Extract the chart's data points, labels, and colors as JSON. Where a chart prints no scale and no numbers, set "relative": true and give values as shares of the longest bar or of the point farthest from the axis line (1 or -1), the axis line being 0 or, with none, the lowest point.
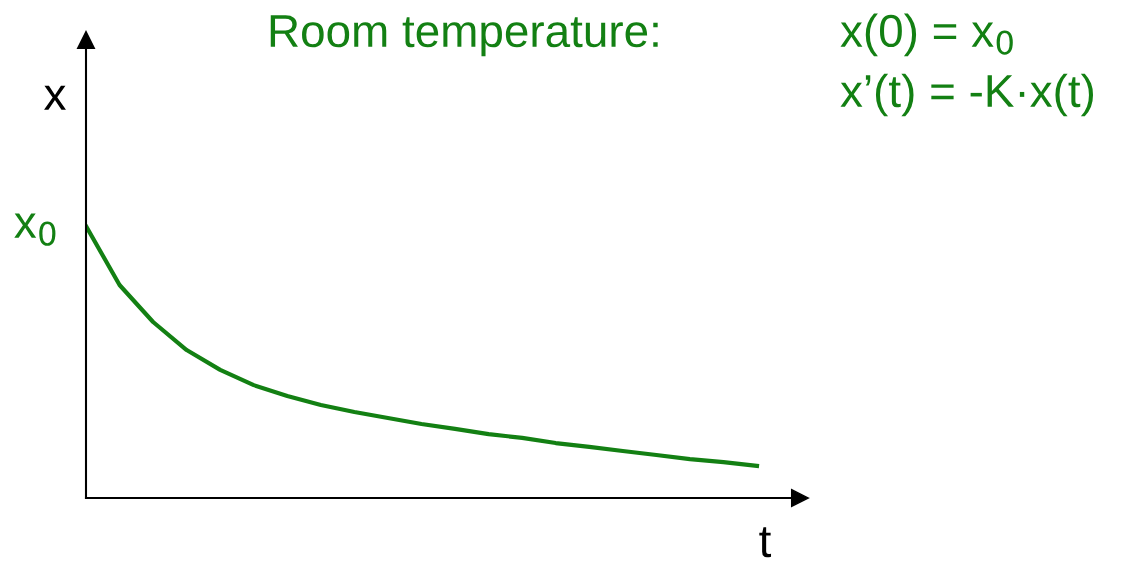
{
  "chart_data": {
    "type": "line",
    "relative": true,
    "title": "Room temperature:",
    "xlabel": "t",
    "ylabel": "x",
    "categories": [
      null,
      null,
      null,
      null,
      null,
      null,
      null,
      null,
      null,
      null,
      null,
      null,
      null,
      null,
      null,
      null,
      null,
      null,
      null,
      null,
      null
    ],
    "series": [
      {
        "color": "#138013",
        "values": [
          1,
          0.783,
          0.647,
          0.544,
          0.471,
          0.415,
          0.375,
          0.342,
          0.316,
          0.294,
          0.272,
          0.254,
          0.235,
          0.221,
          0.202,
          0.188,
          0.173,
          0.158,
          0.143,
          0.132,
          0.118
        ]
      }
    ],
    "annotations": [
      "x$_{0}$",
      "x(0) = x$_{0}$",
      "x’(t) = -K·x(t)"
    ],
    "legend": false,
    "marker": "none",
    "line_style": "solid"
  }
}
